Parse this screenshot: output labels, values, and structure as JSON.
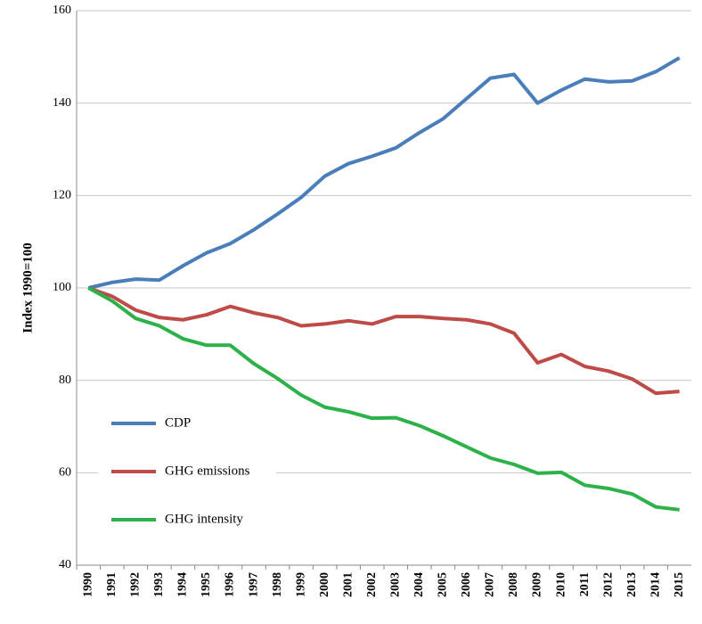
{
  "chart_data": {
    "type": "line",
    "ylabel": "Index 1990=100",
    "categories": [
      "1990",
      "1991",
      "1992",
      "1993",
      "1994",
      "1995",
      "1996",
      "1997",
      "1998",
      "1999",
      "2000",
      "2001",
      "2002",
      "2003",
      "2004",
      "2005",
      "2006",
      "2007",
      "2008",
      "2009",
      "2010",
      "2011",
      "2012",
      "2013",
      "2014",
      "2015"
    ],
    "series": [
      {
        "name": "CDP",
        "color": "#4a7ebb",
        "values": [
          100,
          101.2,
          101.9,
          101.7,
          104.8,
          107.6,
          109.6,
          112.6,
          116,
          119.6,
          124.2,
          126.9,
          128.5,
          130.3,
          133.6,
          136.6,
          141,
          145.4,
          146.2,
          140,
          142.8,
          145.2,
          144.6,
          144.8,
          146.8,
          149.8
        ]
      },
      {
        "name": "GHG emissions",
        "color": "#be4b48",
        "values": [
          100,
          98.2,
          95.2,
          93.6,
          93.1,
          94.2,
          96,
          94.6,
          93.6,
          91.8,
          92.2,
          92.9,
          92.2,
          93.8,
          93.8,
          93.4,
          93.1,
          92.2,
          90.2,
          83.8,
          85.6,
          83,
          82,
          80.3,
          77.2,
          77.6
        ]
      },
      {
        "name": "GHG intensity",
        "color": "#2db24a",
        "values": [
          100,
          97.2,
          93.4,
          91.8,
          89,
          87.6,
          87.6,
          83.6,
          80.4,
          76.8,
          74.2,
          73.2,
          71.8,
          71.9,
          70.2,
          68,
          65.6,
          63.2,
          61.8,
          59.9,
          60.1,
          57.3,
          56.6,
          55.4,
          52.6,
          52
        ]
      }
    ],
    "ylim": [
      40,
      160
    ],
    "yticks": [
      40,
      60,
      80,
      100,
      120,
      140,
      160
    ],
    "grid": true,
    "legend": "lower left"
  }
}
